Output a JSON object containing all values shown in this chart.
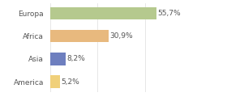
{
  "categories": [
    "Europa",
    "Africa",
    "Asia",
    "America"
  ],
  "values": [
    55.7,
    30.9,
    8.2,
    5.2
  ],
  "labels": [
    "55,7%",
    "30,9%",
    "8,2%",
    "5,2%"
  ],
  "bar_colors": [
    "#b5c98e",
    "#e8b97e",
    "#6e7fbf",
    "#f0d07a"
  ],
  "xlim": [
    0,
    75
  ],
  "background_color": "#ffffff",
  "label_fontsize": 6.5,
  "tick_fontsize": 6.5,
  "bar_height": 0.55
}
